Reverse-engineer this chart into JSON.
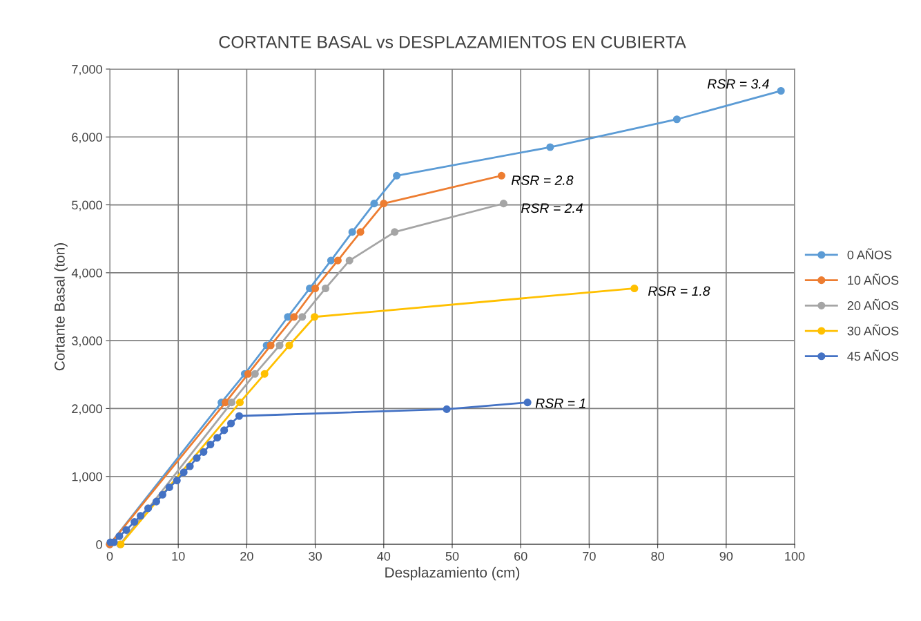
{
  "chart_data": {
    "type": "line",
    "title": "CORTANTE BASAL vs DESPLAZAMIENTOS EN CUBIERTA",
    "xlabel": "Desplazamiento (cm)",
    "ylabel": "Cortante Basal (ton)",
    "xlim": [
      0,
      100
    ],
    "xticks": [
      0,
      10,
      20,
      30,
      40,
      50,
      60,
      70,
      80,
      90,
      100
    ],
    "ylim": [
      0,
      7000
    ],
    "yticks": [
      {
        "value": 0,
        "label": "0"
      },
      {
        "value": 1000,
        "label": "1,000"
      },
      {
        "value": 2000,
        "label": "2,000"
      },
      {
        "value": 3000,
        "label": "3,000"
      },
      {
        "value": 4000,
        "label": "4,000"
      },
      {
        "value": 5000,
        "label": "5,000"
      },
      {
        "value": 6000,
        "label": "6,000"
      },
      {
        "value": 7000,
        "label": "7,000"
      }
    ],
    "grid": true,
    "legend": "right",
    "marker": "circle",
    "line_style": "solid",
    "series": [
      {
        "name": "0 AÑOS",
        "color": "#5b9bd5",
        "x": [
          0,
          16.3,
          19.7,
          22.9,
          26.0,
          29.2,
          32.3,
          35.4,
          38.6,
          41.9,
          64.3,
          82.8,
          98.0
        ],
        "values": [
          0,
          2090,
          2510,
          2930,
          3350,
          3770,
          4180,
          4600,
          5020,
          5430,
          5850,
          6260,
          6680
        ]
      },
      {
        "name": "10 AÑOS",
        "color": "#ed7d31",
        "x": [
          0,
          16.9,
          20.2,
          23.5,
          26.9,
          30.0,
          33.3,
          36.6,
          40.0,
          57.2
        ],
        "values": [
          0,
          2090,
          2510,
          2930,
          3350,
          3770,
          4180,
          4600,
          5020,
          5430
        ]
      },
      {
        "name": "20 AÑOS",
        "color": "#a5a5a5",
        "x": [
          1.5,
          17.8,
          21.2,
          24.8,
          28.1,
          31.5,
          35.0,
          41.6,
          57.5
        ],
        "values": [
          0,
          2090,
          2510,
          2930,
          3350,
          3770,
          4180,
          4600,
          5020
        ]
      },
      {
        "name": "30 AÑOS",
        "color": "#ffc000",
        "x": [
          1.6,
          19.0,
          22.6,
          26.2,
          29.9,
          76.6
        ],
        "values": [
          0,
          2090,
          2510,
          2930,
          3350,
          3770
        ]
      },
      {
        "name": "45 AÑOS",
        "color": "#4472c4",
        "x": [
          0.1,
          0.6,
          1.4,
          2.4,
          3.6,
          4.5,
          5.6,
          6.8,
          7.7,
          8.7,
          9.8,
          10.8,
          11.7,
          12.7,
          13.7,
          14.7,
          15.7,
          16.7,
          17.7,
          18.9,
          49.2,
          61.0
        ],
        "values": [
          30,
          30,
          120,
          210,
          330,
          420,
          530,
          630,
          730,
          840,
          940,
          1060,
          1150,
          1270,
          1360,
          1470,
          1570,
          1680,
          1780,
          1890,
          1990,
          2090
        ]
      }
    ],
    "annotations": [
      {
        "text": "RSR = 3.4",
        "x": 98.0,
        "y": 6680
      },
      {
        "text": "RSR = 2.8",
        "x": 57.2,
        "y": 5430
      },
      {
        "text": "RSR = 2.4",
        "x": 57.5,
        "y": 5020
      },
      {
        "text": "RSR = 1.8",
        "x": 76.6,
        "y": 3770
      },
      {
        "text": "RSR = 1",
        "x": 61.0,
        "y": 2090
      }
    ]
  }
}
